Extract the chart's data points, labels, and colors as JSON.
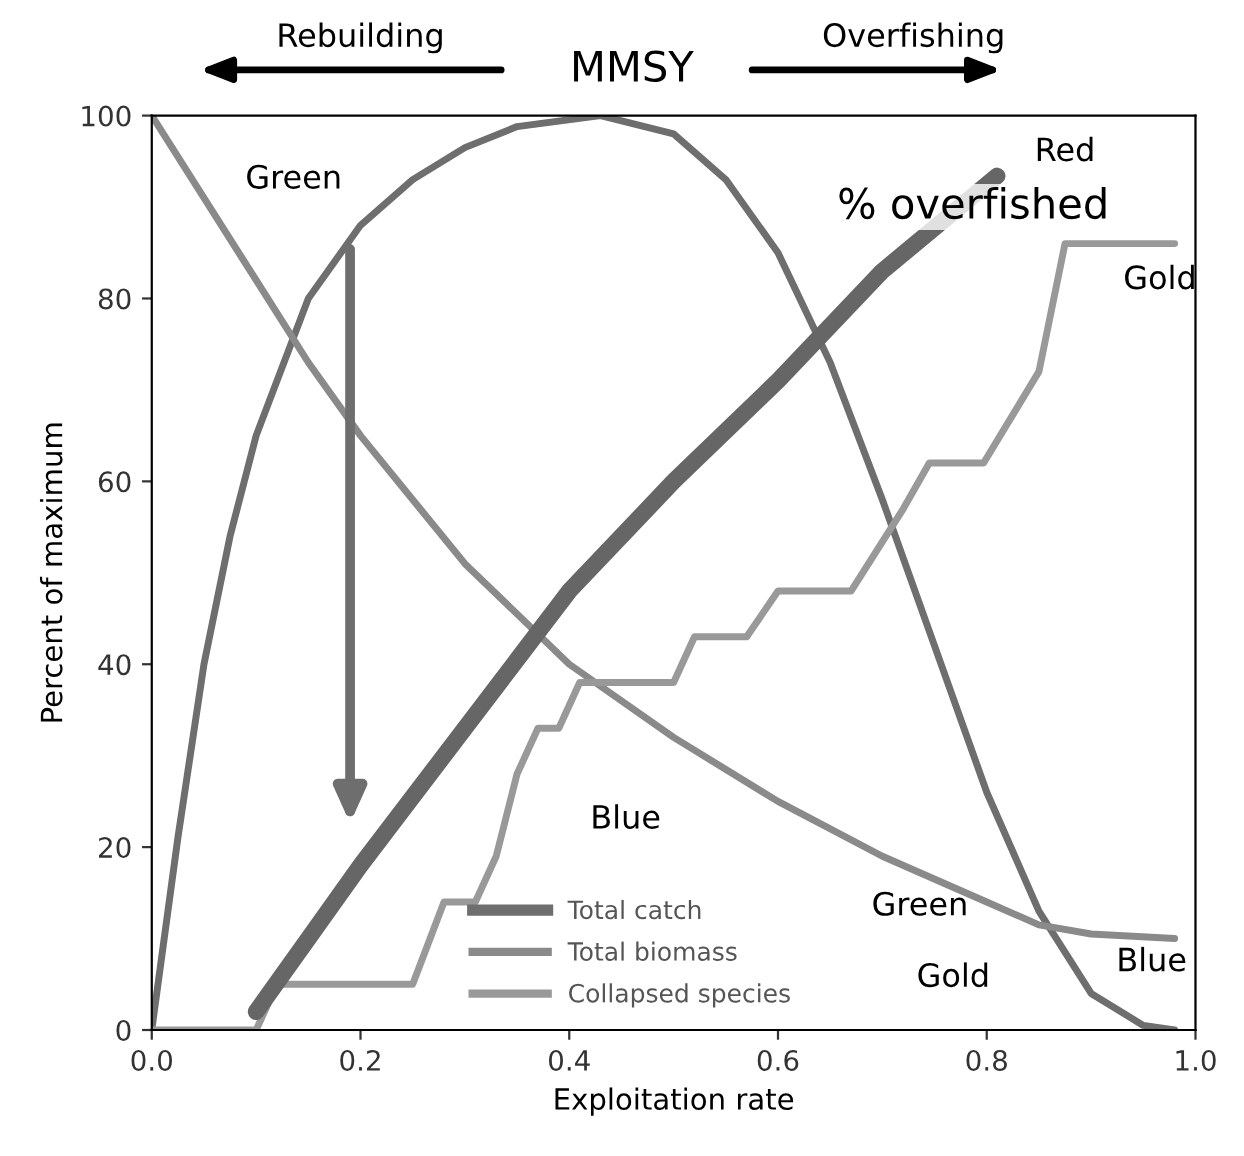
{
  "chart_data": {
    "type": "line",
    "xlabel": "Exploitation rate",
    "ylabel": "Percent of maximum",
    "xlim": [
      0.0,
      1.0
    ],
    "xticks": [
      {
        "value": 0,
        "label": "0.0"
      },
      0.2,
      0.4,
      0.6,
      0.8,
      {
        "value": 1,
        "label": "1.0"
      }
    ],
    "ylim": [
      0,
      100
    ],
    "yticks": [
      0,
      20,
      40,
      60,
      80,
      100
    ],
    "grid": false,
    "legend": "bottom",
    "marker": "none",
    "line_style": "solid",
    "series": [
      {
        "name": "Total catch",
        "color": "#6e6e6e",
        "x": [
          0,
          0.025,
          0.05,
          0.075,
          0.1,
          0.15,
          0.2,
          0.25,
          0.3,
          0.35,
          0.43,
          0.5,
          0.55,
          0.6,
          0.65,
          0.7,
          0.75,
          0.8,
          0.85,
          0.9,
          0.95,
          0.98
        ],
        "values": [
          0,
          21,
          40,
          54,
          65,
          80,
          88,
          93,
          96.5,
          98.8,
          100,
          98,
          93,
          85,
          73,
          58,
          42,
          26,
          13,
          4,
          0.5,
          0
        ]
      },
      {
        "name": "Total biomass",
        "color": "#8a8a8a",
        "x": [
          0,
          0.1,
          0.15,
          0.2,
          0.3,
          0.4,
          0.5,
          0.6,
          0.7,
          0.8,
          0.85,
          0.9,
          0.98
        ],
        "values": [
          100,
          82,
          73,
          65,
          51,
          40,
          32,
          25,
          19,
          14,
          11.5,
          10.5,
          10
        ]
      },
      {
        "name": "Collapsed species",
        "color": "#999999",
        "x": [
          0,
          0.1,
          0.12,
          0.25,
          0.28,
          0.31,
          0.33,
          0.35,
          0.37,
          0.39,
          0.41,
          0.5,
          0.52,
          0.57,
          0.6,
          0.67,
          0.72,
          0.745,
          0.797,
          0.85,
          0.875,
          0.98
        ],
        "values": [
          0,
          0,
          5,
          5,
          14,
          14,
          19,
          28,
          33,
          33,
          38,
          38,
          43,
          43,
          48,
          48,
          57,
          62,
          62,
          72,
          86,
          86
        ]
      },
      {
        "color": "#666666",
        "x": [
          0.1,
          0.15,
          0.2,
          0.3,
          0.4,
          0.5,
          0.6,
          0.7,
          0.81
        ],
        "values": [
          2,
          10,
          18,
          33,
          48,
          60,
          71,
          83,
          93.4
        ]
      }
    ],
    "annotations": [
      "Rebuilding",
      "MMSY",
      "Overfishing",
      "Red",
      "% overfished",
      "Green",
      "Gold",
      "Blue",
      "Green",
      "Gold",
      "Blue"
    ]
  }
}
